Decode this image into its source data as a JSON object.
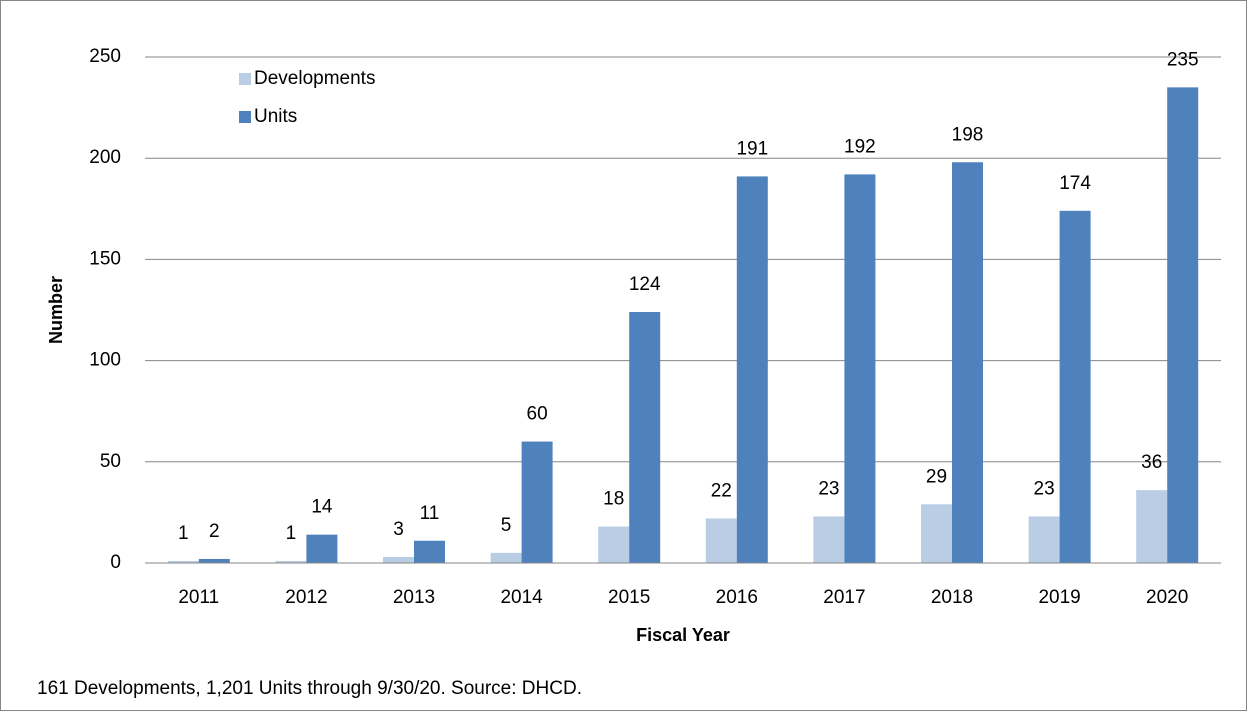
{
  "chart_data": {
    "type": "bar",
    "categories": [
      "2011",
      "2012",
      "2013",
      "2014",
      "2015",
      "2016",
      "2017",
      "2018",
      "2019",
      "2020"
    ],
    "series": [
      {
        "name": "Developments",
        "color": "#b9cde5",
        "values": [
          1,
          1,
          3,
          5,
          18,
          22,
          23,
          29,
          23,
          36
        ]
      },
      {
        "name": "Units",
        "color": "#4f81bd",
        "values": [
          2,
          14,
          11,
          60,
          124,
          191,
          192,
          198,
          174,
          235
        ]
      }
    ],
    "ylim": [
      0,
      250
    ],
    "yticks": [
      0,
      50,
      100,
      150,
      200,
      250
    ],
    "grid": true,
    "y_label": "Number",
    "x_label": "Fiscal Year",
    "legend": "upper left",
    "footnote": "161 Developments, 1,201 Units through 9/30/20. Source: DHCD."
  }
}
